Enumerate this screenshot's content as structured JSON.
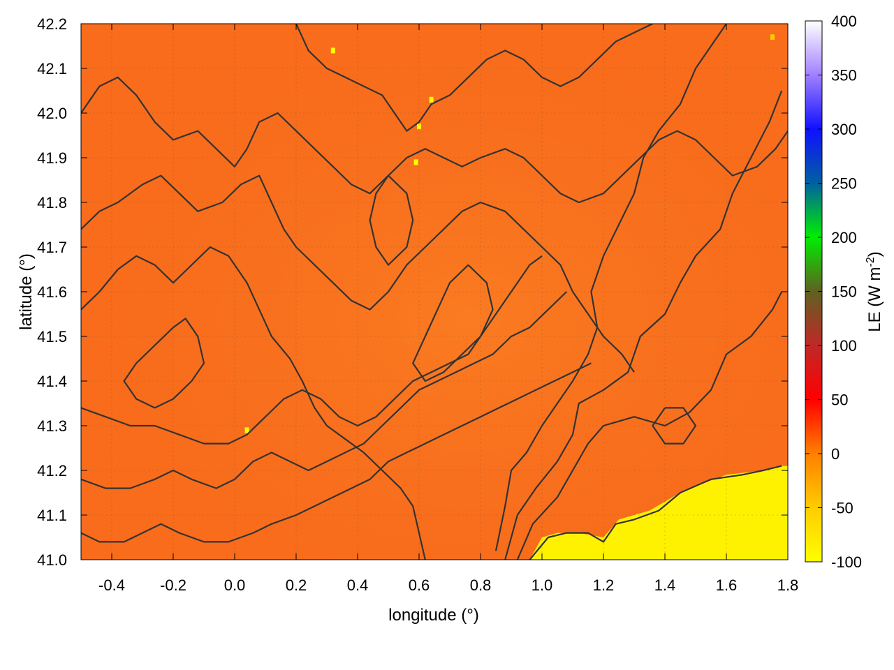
{
  "chart_data": {
    "type": "heatmap",
    "title": "",
    "xlabel": "longitude (°)",
    "ylabel": "latitude (°)",
    "colorbar_label": "LE (W m-2)",
    "colorbar_label_parts": {
      "base": "LE (W m",
      "sup": "-2",
      "close": ")"
    },
    "xlim": [
      -0.5,
      1.8
    ],
    "ylim": [
      41.0,
      42.2
    ],
    "x_ticks": [
      -0.4,
      -0.2,
      0.0,
      0.2,
      0.4,
      0.6,
      0.8,
      1.0,
      1.2,
      1.4,
      1.6,
      1.8
    ],
    "x_tick_labels": [
      "-0.4",
      "-0.2",
      "0.0",
      "0.2",
      "0.4",
      "0.6",
      "0.8",
      "1.0",
      "1.2",
      "1.4",
      "1.6",
      "1.8"
    ],
    "y_ticks": [
      41.0,
      41.1,
      41.2,
      41.3,
      41.4,
      41.5,
      41.6,
      41.7,
      41.8,
      41.9,
      42.0,
      42.1,
      42.2
    ],
    "y_tick_labels": [
      "41.0",
      "41.1",
      "41.2",
      "41.3",
      "41.4",
      "41.5",
      "41.6",
      "41.7",
      "41.8",
      "41.9",
      "42.0",
      "42.1",
      "42.2"
    ],
    "grid": true,
    "colorbar": {
      "range": [
        -100,
        400
      ],
      "ticks": [
        -100,
        -50,
        0,
        50,
        100,
        150,
        200,
        250,
        300,
        350,
        400
      ],
      "tick_labels": [
        "-100",
        "-50",
        "0",
        "50",
        "100",
        "150",
        "200",
        "250",
        "300",
        "350",
        "400"
      ],
      "stops": [
        {
          "value": -100,
          "color": "#ffff00"
        },
        {
          "value": -50,
          "color": "#ffcc00"
        },
        {
          "value": 0,
          "color": "#ff8000"
        },
        {
          "value": 50,
          "color": "#ff0000"
        },
        {
          "value": 100,
          "color": "#c02828"
        },
        {
          "value": 150,
          "color": "#606020"
        },
        {
          "value": 200,
          "color": "#00ee00"
        },
        {
          "value": 250,
          "color": "#0060a0"
        },
        {
          "value": 300,
          "color": "#1010ff"
        },
        {
          "value": 350,
          "color": "#a080ff"
        },
        {
          "value": 400,
          "color": "#ffffff"
        }
      ]
    },
    "background_value": 15,
    "land_color": "#f86c1c",
    "land_color_light": "#fa7e22",
    "sea_color": "#fff200",
    "contour_color": "#333333",
    "sea_region_boundary": [
      [
        0.96,
        41.0
      ],
      [
        1.0,
        41.05
      ],
      [
        1.05,
        41.06
      ],
      [
        1.12,
        41.06
      ],
      [
        1.2,
        41.05
      ],
      [
        1.25,
        41.09
      ],
      [
        1.35,
        41.11
      ],
      [
        1.45,
        41.15
      ],
      [
        1.52,
        41.17
      ],
      [
        1.6,
        41.19
      ],
      [
        1.72,
        41.2
      ],
      [
        1.78,
        41.21
      ],
      [
        1.8,
        41.21
      ],
      [
        1.8,
        41.0
      ]
    ],
    "contours": [
      [
        [
          0.96,
          41.0
        ],
        [
          1.02,
          41.05
        ],
        [
          1.08,
          41.06
        ],
        [
          1.15,
          41.06
        ],
        [
          1.2,
          41.04
        ],
        [
          1.24,
          41.08
        ],
        [
          1.3,
          41.09
        ],
        [
          1.38,
          41.11
        ],
        [
          1.45,
          41.15
        ],
        [
          1.55,
          41.18
        ],
        [
          1.65,
          41.19
        ],
        [
          1.72,
          41.2
        ],
        [
          1.78,
          41.21
        ]
      ],
      [
        [
          0.92,
          41.0
        ],
        [
          0.97,
          41.08
        ],
        [
          1.05,
          41.14
        ],
        [
          1.1,
          41.2
        ],
        [
          1.15,
          41.26
        ],
        [
          1.2,
          41.3
        ],
        [
          1.3,
          41.32
        ],
        [
          1.4,
          41.3
        ],
        [
          1.48,
          41.33
        ],
        [
          1.55,
          41.38
        ],
        [
          1.6,
          41.46
        ],
        [
          1.68,
          41.5
        ],
        [
          1.75,
          41.56
        ],
        [
          1.78,
          41.6
        ]
      ],
      [
        [
          0.88,
          41.0
        ],
        [
          0.92,
          41.1
        ],
        [
          0.98,
          41.16
        ],
        [
          1.05,
          41.22
        ],
        [
          1.1,
          41.28
        ],
        [
          1.12,
          41.35
        ],
        [
          1.2,
          41.38
        ],
        [
          1.28,
          41.42
        ],
        [
          1.32,
          41.5
        ],
        [
          1.4,
          41.55
        ],
        [
          1.45,
          41.62
        ],
        [
          1.5,
          41.68
        ],
        [
          1.58,
          41.74
        ],
        [
          1.62,
          41.82
        ],
        [
          1.68,
          41.9
        ],
        [
          1.74,
          41.98
        ],
        [
          1.78,
          42.05
        ]
      ],
      [
        [
          0.85,
          41.02
        ],
        [
          0.88,
          41.12
        ],
        [
          0.9,
          41.2
        ],
        [
          0.95,
          41.24
        ],
        [
          1.0,
          41.3
        ],
        [
          1.05,
          41.35
        ],
        [
          1.1,
          41.4
        ],
        [
          1.15,
          41.46
        ],
        [
          1.18,
          41.52
        ],
        [
          1.16,
          41.6
        ],
        [
          1.2,
          41.68
        ],
        [
          1.25,
          41.75
        ],
        [
          1.3,
          41.82
        ],
        [
          1.33,
          41.9
        ],
        [
          1.38,
          41.96
        ],
        [
          1.45,
          42.02
        ],
        [
          1.5,
          42.1
        ],
        [
          1.55,
          42.15
        ],
        [
          1.6,
          42.2
        ]
      ],
      [
        [
          -0.5,
          41.56
        ],
        [
          -0.44,
          41.6
        ],
        [
          -0.38,
          41.65
        ],
        [
          -0.32,
          41.68
        ],
        [
          -0.26,
          41.66
        ],
        [
          -0.2,
          41.62
        ],
        [
          -0.14,
          41.66
        ],
        [
          -0.08,
          41.7
        ],
        [
          -0.02,
          41.68
        ],
        [
          0.04,
          41.62
        ],
        [
          0.08,
          41.56
        ],
        [
          0.12,
          41.5
        ],
        [
          0.18,
          41.45
        ],
        [
          0.22,
          41.4
        ],
        [
          0.26,
          41.34
        ],
        [
          0.3,
          41.3
        ],
        [
          0.36,
          41.27
        ],
        [
          0.42,
          41.24
        ],
        [
          0.48,
          41.2
        ],
        [
          0.54,
          41.16
        ],
        [
          0.58,
          41.12
        ],
        [
          0.6,
          41.06
        ],
        [
          0.62,
          41.0
        ]
      ],
      [
        [
          -0.5,
          41.74
        ],
        [
          -0.44,
          41.78
        ],
        [
          -0.38,
          41.8
        ],
        [
          -0.3,
          41.84
        ],
        [
          -0.24,
          41.86
        ],
        [
          -0.18,
          41.82
        ],
        [
          -0.12,
          41.78
        ],
        [
          -0.04,
          41.8
        ],
        [
          0.02,
          41.84
        ],
        [
          0.08,
          41.86
        ],
        [
          0.12,
          41.8
        ],
        [
          0.16,
          41.74
        ],
        [
          0.2,
          41.7
        ],
        [
          0.26,
          41.66
        ],
        [
          0.32,
          41.62
        ],
        [
          0.38,
          41.58
        ],
        [
          0.44,
          41.56
        ],
        [
          0.5,
          41.6
        ],
        [
          0.56,
          41.66
        ],
        [
          0.62,
          41.7
        ],
        [
          0.68,
          41.74
        ],
        [
          0.74,
          41.78
        ],
        [
          0.8,
          41.8
        ],
        [
          0.88,
          41.78
        ],
        [
          0.94,
          41.74
        ],
        [
          1.0,
          41.7
        ],
        [
          1.06,
          41.66
        ],
        [
          1.1,
          41.6
        ],
        [
          1.16,
          41.54
        ],
        [
          1.2,
          41.5
        ],
        [
          1.26,
          41.46
        ],
        [
          1.3,
          41.42
        ]
      ],
      [
        [
          -0.5,
          42.0
        ],
        [
          -0.44,
          42.06
        ],
        [
          -0.38,
          42.08
        ],
        [
          -0.32,
          42.04
        ],
        [
          -0.26,
          41.98
        ],
        [
          -0.2,
          41.94
        ],
        [
          -0.12,
          41.96
        ],
        [
          -0.06,
          41.92
        ],
        [
          0.0,
          41.88
        ],
        [
          0.04,
          41.92
        ],
        [
          0.08,
          41.98
        ],
        [
          0.14,
          42.0
        ],
        [
          0.2,
          41.96
        ],
        [
          0.26,
          41.92
        ],
        [
          0.32,
          41.88
        ],
        [
          0.38,
          41.84
        ],
        [
          0.44,
          41.82
        ],
        [
          0.5,
          41.86
        ],
        [
          0.56,
          41.9
        ],
        [
          0.62,
          41.92
        ],
        [
          0.68,
          41.9
        ],
        [
          0.74,
          41.88
        ],
        [
          0.8,
          41.9
        ],
        [
          0.88,
          41.92
        ],
        [
          0.94,
          41.9
        ],
        [
          1.0,
          41.86
        ],
        [
          1.06,
          41.82
        ],
        [
          1.12,
          41.8
        ],
        [
          1.2,
          41.82
        ],
        [
          1.26,
          41.86
        ],
        [
          1.32,
          41.9
        ],
        [
          1.38,
          41.94
        ],
        [
          1.44,
          41.96
        ],
        [
          1.5,
          41.94
        ],
        [
          1.56,
          41.9
        ],
        [
          1.62,
          41.86
        ],
        [
          1.7,
          41.88
        ],
        [
          1.76,
          41.92
        ],
        [
          1.8,
          41.96
        ]
      ],
      [
        [
          -0.5,
          41.34
        ],
        [
          -0.42,
          41.32
        ],
        [
          -0.34,
          41.3
        ],
        [
          -0.26,
          41.3
        ],
        [
          -0.18,
          41.28
        ],
        [
          -0.1,
          41.26
        ],
        [
          -0.02,
          41.26
        ],
        [
          0.04,
          41.28
        ],
        [
          0.1,
          41.32
        ],
        [
          0.16,
          41.36
        ],
        [
          0.22,
          41.38
        ],
        [
          0.28,
          41.36
        ],
        [
          0.34,
          41.32
        ],
        [
          0.4,
          41.3
        ],
        [
          0.46,
          41.32
        ],
        [
          0.52,
          41.36
        ],
        [
          0.58,
          41.4
        ],
        [
          0.64,
          41.42
        ],
        [
          0.7,
          41.44
        ],
        [
          0.76,
          41.46
        ],
        [
          0.8,
          41.5
        ],
        [
          0.84,
          41.54
        ],
        [
          0.88,
          41.58
        ],
        [
          0.92,
          41.62
        ],
        [
          0.96,
          41.66
        ],
        [
          1.0,
          41.68
        ]
      ],
      [
        [
          -0.5,
          41.18
        ],
        [
          -0.42,
          41.16
        ],
        [
          -0.34,
          41.16
        ],
        [
          -0.26,
          41.18
        ],
        [
          -0.2,
          41.2
        ],
        [
          -0.14,
          41.18
        ],
        [
          -0.06,
          41.16
        ],
        [
          0.0,
          41.18
        ],
        [
          0.06,
          41.22
        ],
        [
          0.12,
          41.24
        ],
        [
          0.18,
          41.22
        ],
        [
          0.24,
          41.2
        ],
        [
          0.3,
          41.22
        ],
        [
          0.36,
          41.24
        ],
        [
          0.42,
          41.26
        ],
        [
          0.48,
          41.3
        ],
        [
          0.54,
          41.34
        ],
        [
          0.6,
          41.38
        ],
        [
          0.66,
          41.4
        ],
        [
          0.72,
          41.42
        ],
        [
          0.78,
          41.44
        ],
        [
          0.84,
          41.46
        ],
        [
          0.9,
          41.5
        ],
        [
          0.96,
          41.52
        ],
        [
          1.02,
          41.56
        ],
        [
          1.08,
          41.6
        ]
      ],
      [
        [
          -0.5,
          41.06
        ],
        [
          -0.44,
          41.04
        ],
        [
          -0.36,
          41.04
        ],
        [
          -0.3,
          41.06
        ],
        [
          -0.24,
          41.08
        ],
        [
          -0.18,
          41.06
        ],
        [
          -0.1,
          41.04
        ],
        [
          -0.02,
          41.04
        ],
        [
          0.06,
          41.06
        ],
        [
          0.12,
          41.08
        ],
        [
          0.2,
          41.1
        ],
        [
          0.26,
          41.12
        ],
        [
          0.32,
          41.14
        ],
        [
          0.38,
          41.16
        ],
        [
          0.44,
          41.18
        ],
        [
          0.5,
          41.22
        ],
        [
          0.56,
          41.24
        ],
        [
          0.62,
          41.26
        ],
        [
          0.68,
          41.28
        ],
        [
          0.74,
          41.3
        ],
        [
          0.8,
          41.32
        ],
        [
          0.86,
          41.34
        ],
        [
          0.92,
          41.36
        ],
        [
          0.98,
          41.38
        ],
        [
          1.04,
          41.4
        ],
        [
          1.1,
          41.42
        ],
        [
          1.16,
          41.44
        ]
      ],
      [
        [
          0.2,
          42.2
        ],
        [
          0.24,
          42.14
        ],
        [
          0.3,
          42.1
        ],
        [
          0.36,
          42.08
        ],
        [
          0.42,
          42.06
        ],
        [
          0.48,
          42.04
        ],
        [
          0.52,
          42.0
        ],
        [
          0.56,
          41.96
        ],
        [
          0.6,
          41.98
        ],
        [
          0.64,
          42.02
        ],
        [
          0.7,
          42.04
        ],
        [
          0.76,
          42.08
        ],
        [
          0.82,
          42.12
        ],
        [
          0.88,
          42.14
        ],
        [
          0.94,
          42.12
        ],
        [
          1.0,
          42.08
        ],
        [
          1.06,
          42.06
        ],
        [
          1.12,
          42.08
        ],
        [
          1.18,
          42.12
        ],
        [
          1.24,
          42.16
        ],
        [
          1.3,
          42.18
        ],
        [
          1.36,
          42.2
        ]
      ],
      [
        [
          -0.2,
          41.52
        ],
        [
          -0.26,
          41.48
        ],
        [
          -0.32,
          41.44
        ],
        [
          -0.36,
          41.4
        ],
        [
          -0.32,
          41.36
        ],
        [
          -0.26,
          41.34
        ],
        [
          -0.2,
          41.36
        ],
        [
          -0.14,
          41.4
        ],
        [
          -0.1,
          41.44
        ],
        [
          -0.12,
          41.5
        ],
        [
          -0.16,
          41.54
        ],
        [
          -0.2,
          41.52
        ]
      ],
      [
        [
          0.76,
          41.66
        ],
        [
          0.7,
          41.62
        ],
        [
          0.66,
          41.56
        ],
        [
          0.62,
          41.5
        ],
        [
          0.58,
          41.44
        ],
        [
          0.62,
          41.4
        ],
        [
          0.68,
          41.42
        ],
        [
          0.74,
          41.46
        ],
        [
          0.8,
          41.5
        ],
        [
          0.84,
          41.56
        ],
        [
          0.82,
          41.62
        ],
        [
          0.76,
          41.66
        ]
      ],
      [
        [
          1.4,
          41.34
        ],
        [
          1.36,
          41.3
        ],
        [
          1.4,
          41.26
        ],
        [
          1.46,
          41.26
        ],
        [
          1.5,
          41.3
        ],
        [
          1.46,
          41.34
        ],
        [
          1.4,
          41.34
        ]
      ],
      [
        [
          0.5,
          41.86
        ],
        [
          0.46,
          41.82
        ],
        [
          0.44,
          41.76
        ],
        [
          0.46,
          41.7
        ],
        [
          0.5,
          41.66
        ],
        [
          0.56,
          41.7
        ],
        [
          0.58,
          41.76
        ],
        [
          0.56,
          41.82
        ],
        [
          0.5,
          41.86
        ]
      ]
    ],
    "hotspots": [
      {
        "x": 0.32,
        "y": 42.14,
        "value": -60
      },
      {
        "x": 0.64,
        "y": 42.03,
        "value": -60
      },
      {
        "x": 0.6,
        "y": 41.97,
        "value": -70
      },
      {
        "x": 0.59,
        "y": 41.89,
        "value": -60
      },
      {
        "x": 0.04,
        "y": 41.29,
        "value": -70
      },
      {
        "x": 1.75,
        "y": 42.17,
        "value": -40
      }
    ]
  }
}
